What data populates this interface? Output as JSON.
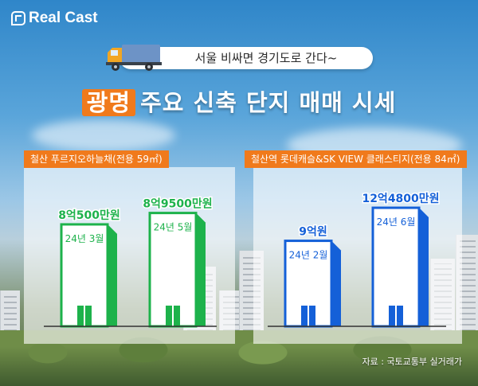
{
  "brand": {
    "name": "Real Cast"
  },
  "header": {
    "subtitle": "서울 비싸면 경기도로 간다~",
    "headline_highlight": "광명",
    "headline_rest": "주요 신축 단지 매매 시세"
  },
  "source_note": "자료 : 국토교통부 실거래가",
  "colors": {
    "left": "#1db24b",
    "right": "#1460d8",
    "accent": "#f07a1c"
  },
  "chart_data": [
    {
      "type": "bar",
      "title": "철산 푸르지오하늘채(전용 59㎡)",
      "categories": [
        "24년 3월",
        "24년 5월"
      ],
      "values": [
        80500,
        89500
      ],
      "data_labels": [
        "8억500만원",
        "8억9500만원"
      ],
      "unit": "만원",
      "ylim": [
        0,
        110000
      ]
    },
    {
      "type": "bar",
      "title": "철산역 롯데캐슬&SK VIEW 클래스티지(전용 84㎡)",
      "categories": [
        "24년 2월",
        "24년 6월"
      ],
      "values": [
        90000,
        124800
      ],
      "data_labels": [
        "9억원",
        "12억4800만원"
      ],
      "unit": "만원",
      "ylim": [
        0,
        155000
      ]
    }
  ]
}
